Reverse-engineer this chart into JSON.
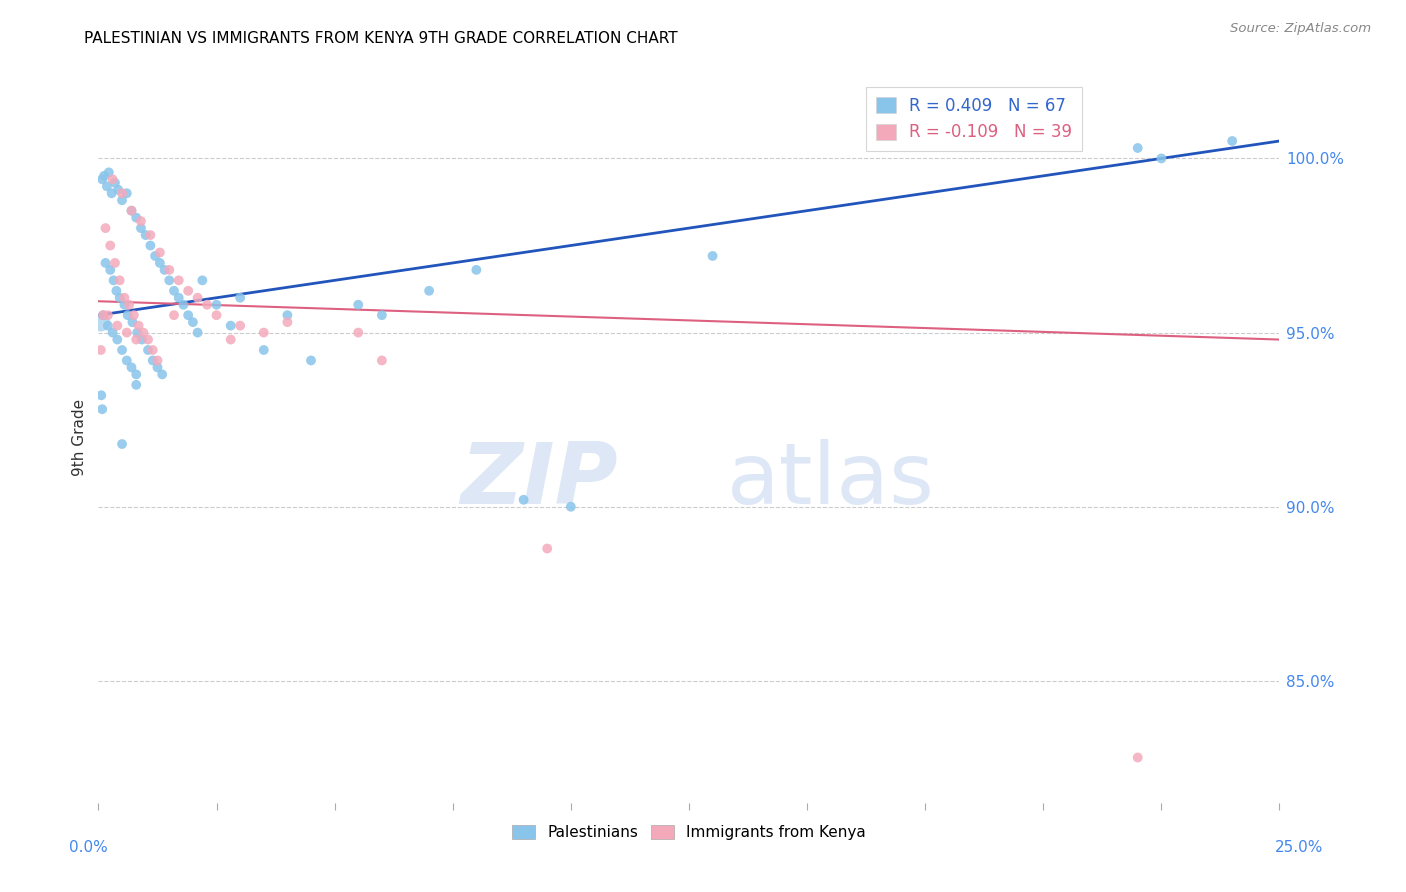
{
  "title": "PALESTINIAN VS IMMIGRANTS FROM KENYA 9TH GRADE CORRELATION CHART",
  "source": "Source: ZipAtlas.com",
  "ylabel": "9th Grade",
  "right_yticks": [
    85.0,
    90.0,
    95.0,
    100.0
  ],
  "right_ytick_labels": [
    "85.0%",
    "90.0%",
    "95.0%",
    "100.0%"
  ],
  "xlim": [
    0.0,
    25.0
  ],
  "ylim": [
    81.5,
    102.5
  ],
  "blue_label": "Palestinians",
  "pink_label": "Immigrants from Kenya",
  "R_blue": 0.409,
  "N_blue": 67,
  "R_pink": -0.109,
  "N_pink": 39,
  "blue_color": "#89C4EA",
  "pink_color": "#F4A9BB",
  "blue_line_color": "#2255BB",
  "pink_line_color": "#DD6080",
  "blue_dots": [
    [
      0.08,
      99.4
    ],
    [
      0.12,
      99.5
    ],
    [
      0.18,
      99.2
    ],
    [
      0.22,
      99.6
    ],
    [
      0.28,
      99.0
    ],
    [
      0.35,
      99.3
    ],
    [
      0.42,
      99.1
    ],
    [
      0.5,
      98.8
    ],
    [
      0.6,
      99.0
    ],
    [
      0.7,
      98.5
    ],
    [
      0.8,
      98.3
    ],
    [
      0.9,
      98.0
    ],
    [
      1.0,
      97.8
    ],
    [
      1.1,
      97.5
    ],
    [
      1.2,
      97.2
    ],
    [
      1.3,
      97.0
    ],
    [
      1.4,
      96.8
    ],
    [
      1.5,
      96.5
    ],
    [
      1.6,
      96.2
    ],
    [
      1.7,
      96.0
    ],
    [
      1.8,
      95.8
    ],
    [
      1.9,
      95.5
    ],
    [
      2.0,
      95.3
    ],
    [
      2.1,
      95.0
    ],
    [
      2.2,
      96.5
    ],
    [
      2.5,
      95.8
    ],
    [
      2.8,
      95.2
    ],
    [
      3.0,
      96.0
    ],
    [
      3.5,
      94.5
    ],
    [
      0.15,
      97.0
    ],
    [
      0.25,
      96.8
    ],
    [
      0.32,
      96.5
    ],
    [
      0.38,
      96.2
    ],
    [
      0.45,
      96.0
    ],
    [
      0.55,
      95.8
    ],
    [
      0.62,
      95.5
    ],
    [
      0.72,
      95.3
    ],
    [
      0.82,
      95.0
    ],
    [
      0.92,
      94.8
    ],
    [
      1.05,
      94.5
    ],
    [
      1.15,
      94.2
    ],
    [
      1.25,
      94.0
    ],
    [
      1.35,
      93.8
    ],
    [
      0.1,
      95.5
    ],
    [
      0.2,
      95.2
    ],
    [
      0.3,
      95.0
    ],
    [
      0.4,
      94.8
    ],
    [
      0.5,
      94.5
    ],
    [
      0.6,
      94.2
    ],
    [
      0.7,
      94.0
    ],
    [
      0.8,
      93.5
    ],
    [
      4.0,
      95.5
    ],
    [
      4.5,
      94.2
    ],
    [
      5.5,
      95.8
    ],
    [
      6.0,
      95.5
    ],
    [
      7.0,
      96.2
    ],
    [
      8.0,
      96.8
    ],
    [
      9.0,
      90.2
    ],
    [
      10.0,
      90.0
    ],
    [
      0.06,
      93.2
    ],
    [
      0.08,
      92.8
    ],
    [
      0.5,
      91.8
    ],
    [
      0.8,
      93.8
    ],
    [
      13.0,
      97.2
    ],
    [
      22.0,
      100.3
    ],
    [
      22.5,
      100.0
    ],
    [
      24.0,
      100.5
    ]
  ],
  "pink_dots": [
    [
      0.3,
      99.4
    ],
    [
      0.5,
      99.0
    ],
    [
      0.7,
      98.5
    ],
    [
      0.9,
      98.2
    ],
    [
      1.1,
      97.8
    ],
    [
      1.3,
      97.3
    ],
    [
      1.5,
      96.8
    ],
    [
      1.7,
      96.5
    ],
    [
      1.9,
      96.2
    ],
    [
      2.1,
      96.0
    ],
    [
      2.3,
      95.8
    ],
    [
      2.5,
      95.5
    ],
    [
      3.0,
      95.2
    ],
    [
      3.5,
      95.0
    ],
    [
      0.15,
      98.0
    ],
    [
      0.25,
      97.5
    ],
    [
      0.35,
      97.0
    ],
    [
      0.45,
      96.5
    ],
    [
      0.55,
      96.0
    ],
    [
      0.65,
      95.8
    ],
    [
      0.75,
      95.5
    ],
    [
      0.85,
      95.2
    ],
    [
      0.95,
      95.0
    ],
    [
      1.05,
      94.8
    ],
    [
      1.15,
      94.5
    ],
    [
      1.25,
      94.2
    ],
    [
      0.2,
      95.5
    ],
    [
      0.4,
      95.2
    ],
    [
      0.6,
      95.0
    ],
    [
      0.8,
      94.8
    ],
    [
      4.0,
      95.3
    ],
    [
      5.5,
      95.0
    ],
    [
      6.0,
      94.2
    ],
    [
      0.1,
      95.5
    ],
    [
      2.8,
      94.8
    ],
    [
      0.05,
      94.5
    ],
    [
      1.6,
      95.5
    ],
    [
      9.5,
      88.8
    ],
    [
      22.0,
      82.8
    ]
  ],
  "blue_trendline": [
    95.5,
    100.5
  ],
  "pink_trendline": [
    95.9,
    94.8
  ],
  "large_cluster_blue": [
    0.05,
    95.3,
    180
  ],
  "dot_size": 50,
  "x_ticks": [
    0,
    2.5,
    5,
    7.5,
    10,
    12.5,
    15,
    17.5,
    20,
    22.5,
    25
  ]
}
